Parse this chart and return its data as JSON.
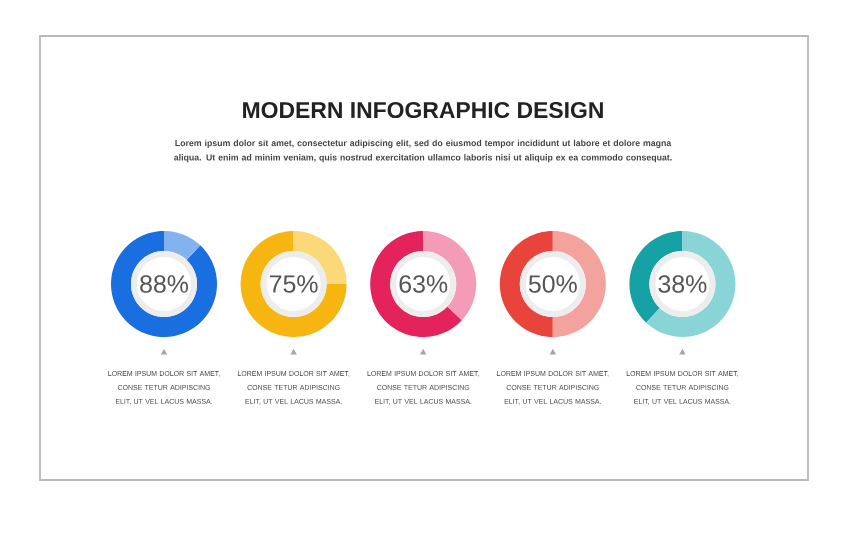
{
  "chart_data": [
    {
      "type": "other",
      "title": "MODERN INFOGRAPHIC DESIGN",
      "subtitle": "Lorem ipsum dolor sit amet, consectetur adipiscing elit, sed do eiusmod tempor incididunt ut labore et dolore magna aliqua. Ut enim ad minim veniam, quis nostrud exercitation ullamco laboris nisi ut aliquip ex ea commodo consequat."
    },
    {
      "type": "donut",
      "categories": [
        null,
        null
      ],
      "values": [
        88,
        12
      ],
      "colors": [
        "#1a6fe0",
        "#82b3ee"
      ],
      "annotations": [
        "88%",
        "LOREM IPSUM DOLOR SIT AMET, CONSE TETUR ADIPISCING ELIT, UT VEL LACUS MASSA."
      ]
    },
    {
      "type": "donut",
      "categories": [
        null,
        null
      ],
      "values": [
        75,
        25
      ],
      "colors": [
        "#f7b512",
        "#fbd978"
      ],
      "annotations": [
        "75%",
        "LOREM IPSUM DOLOR SIT AMET, CONSE TETUR ADIPISCING ELIT, UT VEL LACUS MASSA."
      ]
    },
    {
      "type": "donut",
      "categories": [
        null,
        null
      ],
      "values": [
        63,
        37
      ],
      "colors": [
        "#e4235d",
        "#f39bb7"
      ],
      "annotations": [
        "63%",
        "LOREM IPSUM DOLOR SIT AMET, CONSE TETUR ADIPISCING ELIT, UT VEL LACUS MASSA."
      ]
    },
    {
      "type": "donut",
      "categories": [
        null,
        null
      ],
      "values": [
        50,
        50
      ],
      "colors": [
        "#e8443b",
        "#f4a29d"
      ],
      "annotations": [
        "50%",
        "LOREM IPSUM DOLOR SIT AMET, CONSE TETUR ADIPISCING ELIT, UT VEL LACUS MASSA."
      ]
    },
    {
      "type": "donut",
      "categories": [
        null,
        null
      ],
      "values": [
        38,
        62
      ],
      "colors": [
        "#16a2a5",
        "#88d4d7"
      ],
      "annotations": [
        "38%",
        "LOREM IPSUM DOLOR SIT AMET, CONSE TETUR ADIPISCING ELIT, UT VEL LACUS MASSA."
      ]
    }
  ]
}
